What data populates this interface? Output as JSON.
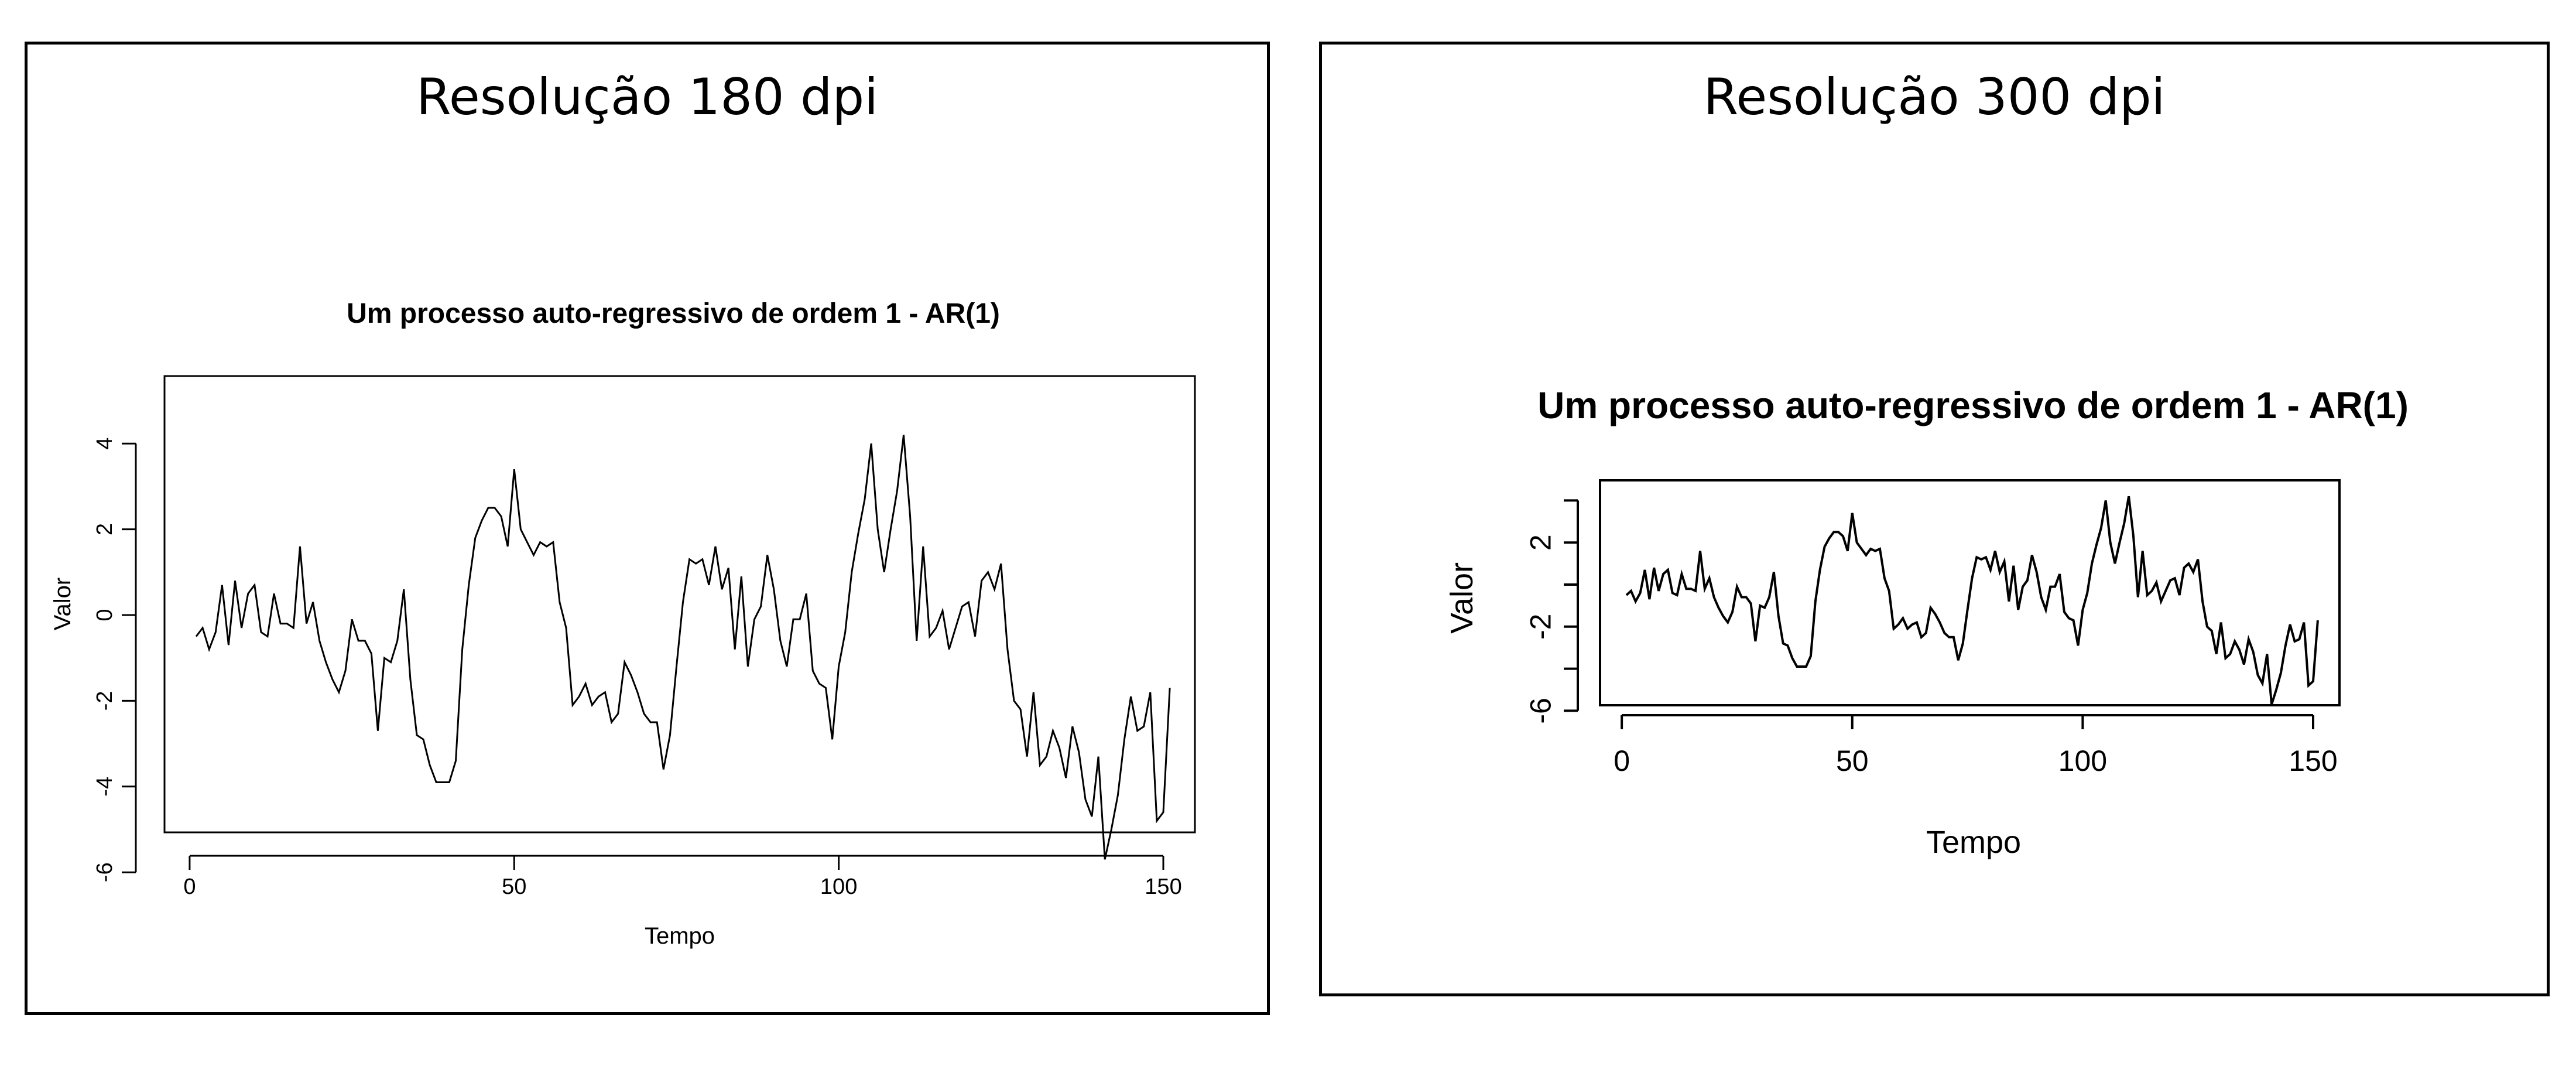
{
  "panels": [
    {
      "title": "Resolução 180 dpi"
    },
    {
      "title": "Resolução 300 dpi"
    }
  ],
  "series_values": [
    -0.5,
    -0.3,
    -0.8,
    -0.4,
    0.7,
    -0.7,
    0.8,
    -0.3,
    0.5,
    0.7,
    -0.4,
    -0.5,
    0.5,
    -0.2,
    -0.2,
    -0.3,
    1.6,
    -0.2,
    0.3,
    -0.6,
    -1.1,
    -1.5,
    -1.8,
    -1.3,
    -0.1,
    -0.6,
    -0.6,
    -0.9,
    -2.7,
    -1.0,
    -1.1,
    -0.6,
    0.6,
    -1.5,
    -2.8,
    -2.9,
    -3.5,
    -3.9,
    -3.9,
    -3.9,
    -3.4,
    -0.8,
    0.7,
    1.8,
    2.2,
    2.5,
    2.5,
    2.3,
    1.6,
    3.4,
    2.0,
    1.7,
    1.4,
    1.7,
    1.6,
    1.7,
    0.3,
    -0.3,
    -2.1,
    -1.9,
    -1.6,
    -2.1,
    -1.9,
    -1.8,
    -2.5,
    -2.3,
    -1.1,
    -1.4,
    -1.8,
    -2.3,
    -2.5,
    -2.5,
    -3.6,
    -2.8,
    -1.2,
    0.3,
    1.3,
    1.2,
    1.3,
    0.7,
    1.6,
    0.6,
    1.1,
    -0.8,
    0.9,
    -1.2,
    -0.1,
    0.2,
    1.4,
    0.6,
    -0.6,
    -1.2,
    -0.1,
    -0.1,
    0.5,
    -1.3,
    -1.6,
    -1.7,
    -2.9,
    -1.2,
    -0.4,
    1.0,
    1.9,
    2.7,
    4.0,
    2.0,
    1.0,
    2.0,
    2.9,
    4.2,
    2.3,
    -0.6,
    1.6,
    -0.5,
    -0.3,
    0.1,
    -0.8,
    -0.3,
    0.2,
    0.3,
    -0.5,
    0.8,
    1.0,
    0.6,
    1.2,
    -0.8,
    -2.0,
    -2.2,
    -3.3,
    -1.8,
    -3.5,
    -3.3,
    -2.7,
    -3.1,
    -3.8,
    -2.6,
    -3.2,
    -4.3,
    -4.7,
    -3.3,
    -5.7,
    -5.0,
    -4.2,
    -2.9,
    -1.9,
    -2.7,
    -2.6,
    -1.8,
    -4.8,
    -4.6,
    -1.7
  ],
  "chart_data": [
    {
      "type": "line",
      "title": "Um processo auto-regressivo de ordem 1 - AR(1)",
      "xlabel": "Tempo",
      "ylabel": "Valor",
      "xlim": [
        1,
        150
      ],
      "ylim": [
        -6,
        4.5
      ],
      "x_ticks": [
        "0",
        "50",
        "100",
        "150"
      ],
      "y_ticks": [
        "4",
        "2",
        "0",
        "-2",
        "-4",
        "-6"
      ],
      "series": [
        {
          "x_start": 1,
          "x_step": 1,
          "values_ref": "series_values"
        }
      ]
    },
    {
      "type": "line",
      "title": "Um processo auto-regressivo de ordem 1 - AR(1)",
      "xlabel": "Tempo",
      "ylabel": "Valor",
      "xlim": [
        1,
        150
      ],
      "ylim": [
        -6,
        4.5
      ],
      "x_ticks": [
        "0",
        "50",
        "100",
        "150"
      ],
      "y_ticks": [
        "2",
        "-2",
        "-6"
      ],
      "series": [
        {
          "x_start": 1,
          "x_step": 1,
          "values_ref": "series_values"
        }
      ]
    }
  ],
  "colors": {
    "line": "#000000",
    "background": "#ffffff",
    "frame": "#000000"
  }
}
